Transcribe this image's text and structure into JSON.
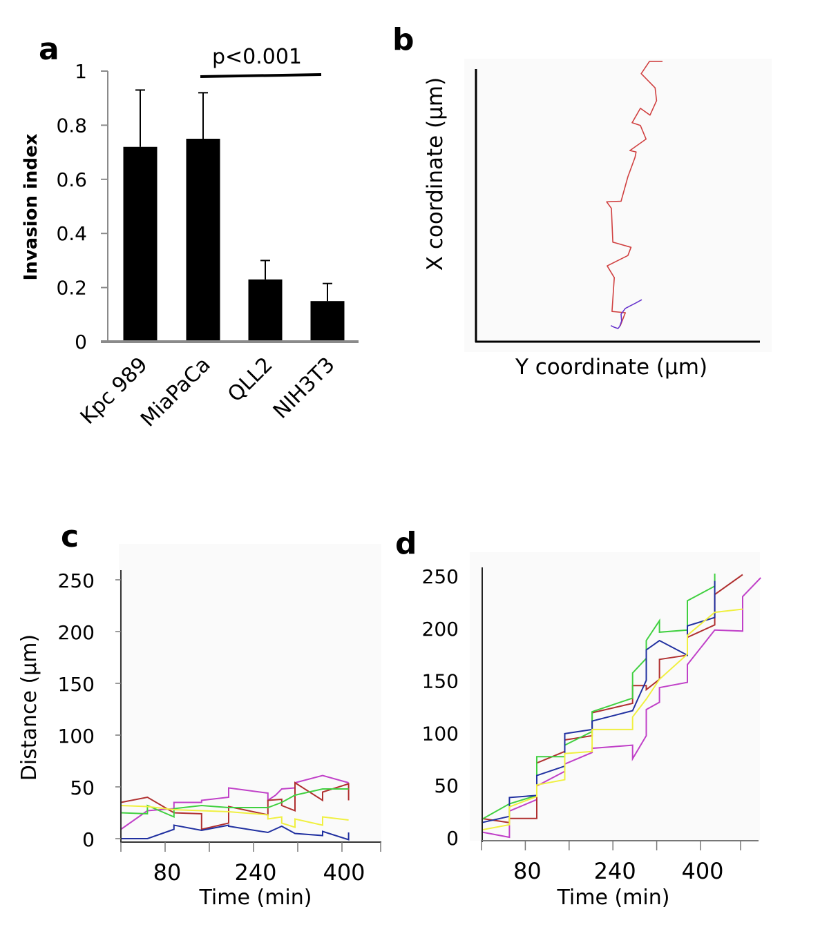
{
  "panels": {
    "a": {
      "letter": "a"
    },
    "b": {
      "letter": "b"
    },
    "c": {
      "letter": "c"
    },
    "d": {
      "letter": "d"
    }
  },
  "chart_data": [
    {
      "id": "a",
      "type": "bar",
      "title": "",
      "xlabel": "",
      "ylabel": "Invasion index",
      "ylim": [
        0,
        1
      ],
      "yticks": [
        0,
        0.2,
        0.4,
        0.6,
        0.8,
        1
      ],
      "ytick_labels": [
        "0",
        "0.2",
        "0.4",
        "0.6",
        "0.8",
        "1"
      ],
      "categories": [
        "Kpc 989",
        "MiaPaCa",
        "QLL2",
        "NIH3T3"
      ],
      "values": [
        0.72,
        0.75,
        0.23,
        0.15
      ],
      "error_upper": [
        0.21,
        0.17,
        0.07,
        0.065
      ],
      "bar_color": "#000000",
      "annotation": {
        "text": "p<0.001",
        "spans_categories": [
          "MiaPaCa",
          "NIH3T3"
        ]
      },
      "grid": false
    },
    {
      "id": "b",
      "type": "line",
      "title": "",
      "xlabel": "Y coordinate (µm)",
      "ylabel": "X coordinate (µm)",
      "note": "Cell trajectories, no tick labels; coordinates in arbitrary units (0-100)",
      "xlim": [
        0,
        100
      ],
      "ylim": [
        0,
        100
      ],
      "grid": false,
      "series": [
        {
          "name": "trajectory-red",
          "color": "#d04040",
          "points": [
            [
              50.8,
              5.8
            ],
            [
              52.6,
              10.6
            ],
            [
              47.9,
              11.1
            ],
            [
              48.7,
              23.5
            ],
            [
              46.2,
              27.8
            ],
            [
              53.5,
              31.6
            ],
            [
              54.6,
              34.6
            ],
            [
              48.2,
              36.5
            ],
            [
              47.7,
              48.9
            ],
            [
              46.0,
              51.3
            ],
            [
              51.1,
              51.5
            ],
            [
              53.5,
              60.5
            ],
            [
              56.0,
              67.6
            ],
            [
              56.4,
              69.6
            ],
            [
              54.2,
              70.1
            ],
            [
              59.9,
              74.3
            ],
            [
              57.9,
              79.3
            ],
            [
              55.0,
              80.3
            ],
            [
              57.9,
              85.6
            ],
            [
              61.3,
              83.1
            ],
            [
              63.6,
              88.4
            ],
            [
              63.1,
              93.1
            ],
            [
              58.2,
              98.3
            ],
            [
              61.1,
              102.8
            ],
            [
              65.7,
              102.8
            ]
          ]
        },
        {
          "name": "trajectory-purple",
          "color": "#6633cc",
          "points": [
            [
              47.5,
              5.9
            ],
            [
              48.7,
              5.3
            ],
            [
              50.0,
              4.8
            ],
            [
              50.6,
              5.6
            ],
            [
              51.3,
              7.6
            ],
            [
              51.1,
              10.1
            ],
            [
              52.6,
              12.2
            ],
            [
              54.4,
              13.2
            ],
            [
              56.3,
              14.2
            ],
            [
              58.4,
              15.4
            ]
          ]
        }
      ]
    },
    {
      "id": "c",
      "type": "line",
      "title": "",
      "xlabel": "Time (min)",
      "ylabel": "Distance (µm)",
      "xlim": [
        0,
        470
      ],
      "ylim": [
        0,
        250
      ],
      "xticks": [
        0,
        80,
        160,
        240,
        320,
        400,
        470
      ],
      "xtick_labels": [
        "80",
        "240",
        "400"
      ],
      "xtick_label_values": [
        80,
        240,
        400
      ],
      "yticks": [
        0,
        50,
        100,
        150,
        200,
        250
      ],
      "ytick_labels": [
        "0",
        "50",
        "100",
        "150",
        "200",
        "250"
      ],
      "grid": false,
      "series": [
        {
          "name": "purple",
          "color": "#c040c8",
          "points": [
            [
              0,
              9
            ],
            [
              48,
              27
            ],
            [
              48,
              27
            ],
            [
              96,
              29
            ],
            [
              96,
              35
            ],
            [
              146,
              35
            ],
            [
              146,
              37
            ],
            [
              195,
              40
            ],
            [
              195,
              49
            ],
            [
              266,
              44
            ],
            [
              266,
              37
            ],
            [
              280,
              42
            ],
            [
              291,
              48
            ],
            [
              315,
              49
            ],
            [
              315,
              54
            ],
            [
              365,
              61
            ],
            [
              412,
              54
            ]
          ]
        },
        {
          "name": "red",
          "color": "#b03030",
          "points": [
            [
              0,
              35
            ],
            [
              48,
              40
            ],
            [
              96,
              25
            ],
            [
              146,
              24
            ],
            [
              146,
              9
            ],
            [
              195,
              15
            ],
            [
              195,
              31
            ],
            [
              266,
              23
            ],
            [
              266,
              37
            ],
            [
              291,
              38
            ],
            [
              291,
              32
            ],
            [
              315,
              27
            ],
            [
              315,
              54
            ],
            [
              365,
              37
            ],
            [
              365,
              45
            ],
            [
              412,
              53
            ],
            [
              412,
              37
            ]
          ]
        },
        {
          "name": "green",
          "color": "#40d040",
          "points": [
            [
              0,
              25
            ],
            [
              48,
              24
            ],
            [
              48,
              32
            ],
            [
              96,
              21
            ],
            [
              96,
              29
            ],
            [
              146,
              32
            ],
            [
              195,
              30
            ],
            [
              266,
              30
            ],
            [
              291,
              35
            ],
            [
              315,
              42
            ],
            [
              365,
              48
            ],
            [
              412,
              48
            ]
          ]
        },
        {
          "name": "yellow",
          "color": "#f0f040",
          "points": [
            [
              0,
              32
            ],
            [
              48,
              31
            ],
            [
              96,
              28
            ],
            [
              146,
              27
            ],
            [
              195,
              26
            ],
            [
              266,
              23
            ],
            [
              266,
              19
            ],
            [
              291,
              21
            ],
            [
              291,
              15
            ],
            [
              315,
              11
            ],
            [
              315,
              19
            ],
            [
              365,
              13
            ],
            [
              365,
              21
            ],
            [
              412,
              18
            ]
          ]
        },
        {
          "name": "blue",
          "color": "#2030a0",
          "points": [
            [
              0,
              0
            ],
            [
              48,
              0
            ],
            [
              96,
              9
            ],
            [
              96,
              13
            ],
            [
              146,
              8
            ],
            [
              195,
              13
            ],
            [
              195,
              12
            ],
            [
              266,
              6
            ],
            [
              291,
              12
            ],
            [
              315,
              5
            ],
            [
              365,
              3
            ],
            [
              365,
              7
            ],
            [
              412,
              -1
            ],
            [
              412,
              6
            ]
          ]
        }
      ]
    },
    {
      "id": "d",
      "type": "line",
      "title": "",
      "xlabel": "Time (min)",
      "ylabel": "",
      "xlim": [
        0,
        500
      ],
      "ylim": [
        0,
        250
      ],
      "xticks": [
        0,
        80,
        160,
        240,
        320,
        400,
        480
      ],
      "xtick_labels": [
        "80",
        "240",
        "400"
      ],
      "xtick_label_values": [
        80,
        240,
        400
      ],
      "yticks": [
        0,
        50,
        100,
        150,
        200,
        250
      ],
      "ytick_labels": [
        "0",
        "50",
        "100",
        "150",
        "200",
        "250"
      ],
      "grid": false,
      "series": [
        {
          "name": "purple",
          "color": "#c040c8",
          "points": [
            [
              0,
              5
            ],
            [
              51,
              0
            ],
            [
              51,
              25
            ],
            [
              101,
              36
            ],
            [
              101,
              49
            ],
            [
              152,
              63
            ],
            [
              152,
              70
            ],
            [
              202,
              81
            ],
            [
              202,
              85
            ],
            [
              276,
              88
            ],
            [
              276,
              75
            ],
            [
              301,
              97
            ],
            [
              301,
              122
            ],
            [
              325,
              129
            ],
            [
              325,
              143
            ],
            [
              376,
              148
            ],
            [
              376,
              165
            ],
            [
              426,
              198
            ],
            [
              477,
              197
            ],
            [
              477,
              230
            ],
            [
              510,
              248
            ]
          ]
        },
        {
          "name": "red",
          "color": "#b03030",
          "points": [
            [
              0,
              18
            ],
            [
              51,
              14
            ],
            [
              51,
              18
            ],
            [
              101,
              18
            ],
            [
              101,
              71
            ],
            [
              152,
              82
            ],
            [
              152,
              93
            ],
            [
              202,
              97
            ],
            [
              202,
              119
            ],
            [
              276,
              128
            ],
            [
              276,
              145
            ],
            [
              301,
              145
            ],
            [
              301,
              141
            ],
            [
              325,
              151
            ],
            [
              325,
              170
            ],
            [
              376,
              174
            ],
            [
              376,
              191
            ],
            [
              426,
              203
            ],
            [
              426,
              232
            ],
            [
              477,
              251
            ]
          ]
        },
        {
          "name": "green",
          "color": "#40d040",
          "points": [
            [
              0,
              17
            ],
            [
              51,
              32
            ],
            [
              101,
              40
            ],
            [
              101,
              77
            ],
            [
              152,
              77
            ],
            [
              152,
              88
            ],
            [
              202,
              101
            ],
            [
              202,
              120
            ],
            [
              276,
              133
            ],
            [
              276,
              157
            ],
            [
              301,
              171
            ],
            [
              301,
              188
            ],
            [
              325,
              207
            ],
            [
              325,
              196
            ],
            [
              376,
              198
            ],
            [
              376,
              226
            ],
            [
              426,
              240
            ],
            [
              426,
              252
            ]
          ]
        },
        {
          "name": "blue",
          "color": "#2030a0",
          "points": [
            [
              0,
              14
            ],
            [
              51,
              20
            ],
            [
              51,
              38
            ],
            [
              101,
              40
            ],
            [
              101,
              59
            ],
            [
              152,
              68
            ],
            [
              152,
              99
            ],
            [
              202,
              103
            ],
            [
              202,
              111
            ],
            [
              276,
              121
            ],
            [
              301,
              150
            ],
            [
              301,
              179
            ],
            [
              325,
              188
            ],
            [
              376,
              174
            ],
            [
              376,
              202
            ],
            [
              426,
              210
            ],
            [
              426,
              245
            ]
          ]
        },
        {
          "name": "yellow",
          "color": "#f0f040",
          "points": [
            [
              0,
              7
            ],
            [
              51,
              12
            ],
            [
              51,
              29
            ],
            [
              101,
              39
            ],
            [
              101,
              50
            ],
            [
              152,
              55
            ],
            [
              152,
              80
            ],
            [
              202,
              82
            ],
            [
              202,
              103
            ],
            [
              276,
              103
            ],
            [
              276,
              115
            ],
            [
              301,
              132
            ],
            [
              325,
              151
            ],
            [
              376,
              175
            ],
            [
              376,
              193
            ],
            [
              426,
              215
            ],
            [
              477,
              218
            ]
          ]
        }
      ]
    }
  ]
}
